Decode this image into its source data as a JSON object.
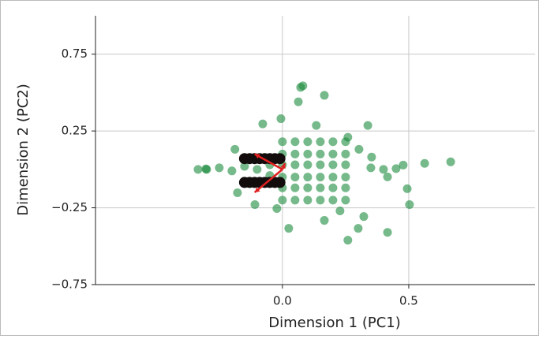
{
  "chart_data": {
    "type": "scatter",
    "x_label": "Dimension 1 (PC1)",
    "y_label": "Dimension 2 (PC2)",
    "xlim": [
      -0.74,
      1.0
    ],
    "ylim": [
      -0.75,
      1.0
    ],
    "xticks": [
      {
        "value": 0,
        "label": "0.0"
      },
      0.5
    ],
    "yticks": [
      {
        "value": -0.75,
        "label": "−0.75"
      },
      {
        "value": -0.25,
        "label": "−0.25"
      },
      0.25,
      0.75
    ],
    "grid": true,
    "series": [
      {
        "color": "#1a8a3c",
        "x": [
          0.072,
          0.081,
          0.166,
          0.063,
          0.338,
          -0.078,
          -0.006,
          0.666,
          0.563,
          0.478,
          0.416,
          0.494,
          0.503,
          0.416,
          0.259,
          0.025,
          0.3,
          -0.178,
          -0.188,
          -0.303,
          -0.334,
          -0.109,
          -0.022,
          0.166,
          0.228,
          0.322,
          0.134,
          0.259,
          0.303,
          0.353,
          -0.3,
          -0.25,
          -0.2,
          -0.15,
          -0.1,
          -0.05,
          -0.05,
          0.35,
          0.4,
          0.45,
          0,
          0,
          0,
          0,
          0,
          0,
          0.05,
          0.05,
          0.05,
          0.05,
          0.05,
          0.05,
          0.1,
          0.1,
          0.1,
          0.1,
          0.1,
          0.1,
          0.15,
          0.15,
          0.15,
          0.15,
          0.15,
          0.15,
          0.2,
          0.2,
          0.2,
          0.2,
          0.2,
          0.2,
          0.25,
          0.25,
          0.25,
          0.25,
          0.25,
          0.25
        ],
        "y": [
          0.534,
          0.544,
          0.482,
          0.44,
          0.286,
          0.296,
          0.33,
          0.049,
          0.039,
          0.028,
          -0.049,
          -0.126,
          -0.229,
          -0.41,
          -0.461,
          -0.384,
          -0.384,
          -0.152,
          0.131,
          0.003,
          0,
          -0.229,
          -0.255,
          -0.332,
          -0.27,
          -0.307,
          0.286,
          0.209,
          0.131,
          0.08,
          0,
          0.01,
          -0.01,
          0.02,
          0,
          0.03,
          -0.04,
          0.01,
          0,
          0.005,
          -0.2,
          -0.12,
          -0.05,
          0.03,
          0.1,
          0.18,
          -0.2,
          -0.12,
          -0.05,
          0.03,
          0.1,
          0.18,
          -0.2,
          -0.12,
          -0.05,
          0.03,
          0.1,
          0.18,
          -0.2,
          -0.12,
          -0.05,
          0.03,
          0.1,
          0.18,
          -0.2,
          -0.12,
          -0.05,
          0.03,
          0.1,
          0.18,
          -0.2,
          -0.12,
          -0.05,
          0.03,
          0.1,
          0.18
        ]
      },
      {
        "color": "#120c0c",
        "x": [
          -0.15,
          -0.13,
          -0.11,
          -0.09,
          -0.07,
          -0.05,
          -0.03,
          -0.01,
          -0.15,
          -0.13,
          -0.11,
          -0.09,
          -0.07,
          -0.05,
          -0.03,
          -0.01
        ],
        "y": [
          0.07,
          0.07,
          0.07,
          0.07,
          0.07,
          0.07,
          0.07,
          0.07,
          -0.085,
          -0.085,
          -0.085,
          -0.085,
          -0.085,
          -0.085,
          -0.085,
          -0.085
        ]
      }
    ],
    "arrows": {
      "color": "#e02020",
      "x": [
        -0.11,
        -0.11,
        0.01
      ],
      "y": [
        0.1,
        -0.15,
        0.04
      ]
    }
  }
}
